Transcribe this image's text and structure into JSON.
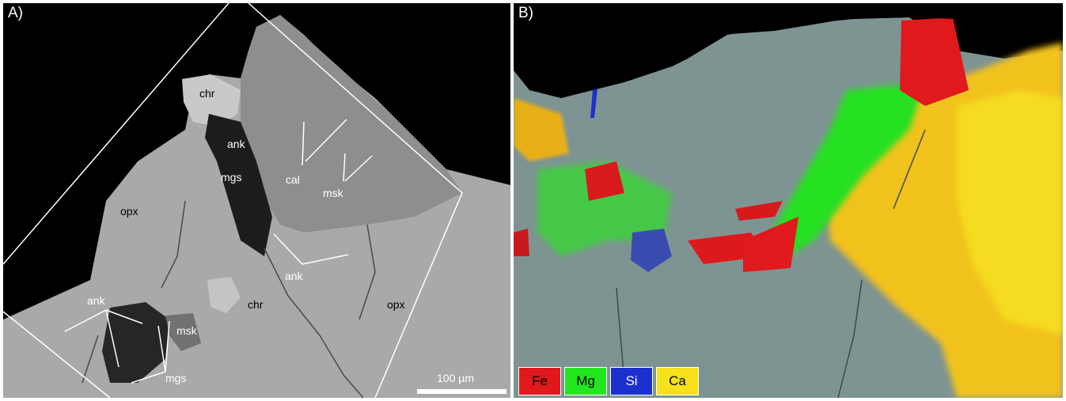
{
  "panel_a": {
    "label": "A)",
    "labels": {
      "chr_top": "chr",
      "ank_top": "ank",
      "mgs_top": "mgs",
      "cal": "cal",
      "msk_right": "msk",
      "opx_left": "opx",
      "ank_mid": "ank",
      "chr_bottom": "chr",
      "opx_right": "opx",
      "ank_bottom": "ank",
      "msk_bottom": "msk",
      "mgs_bottom": "mgs"
    },
    "scale_bar": "100 µm"
  },
  "panel_b": {
    "label": "B)",
    "legend": [
      {
        "element": "Fe",
        "color": "#e0191c"
      },
      {
        "element": "Mg",
        "color": "#22e61e"
      },
      {
        "element": "Si",
        "color": "#1c2fcf"
      },
      {
        "element": "Ca",
        "color": "#f6e11a"
      }
    ]
  }
}
